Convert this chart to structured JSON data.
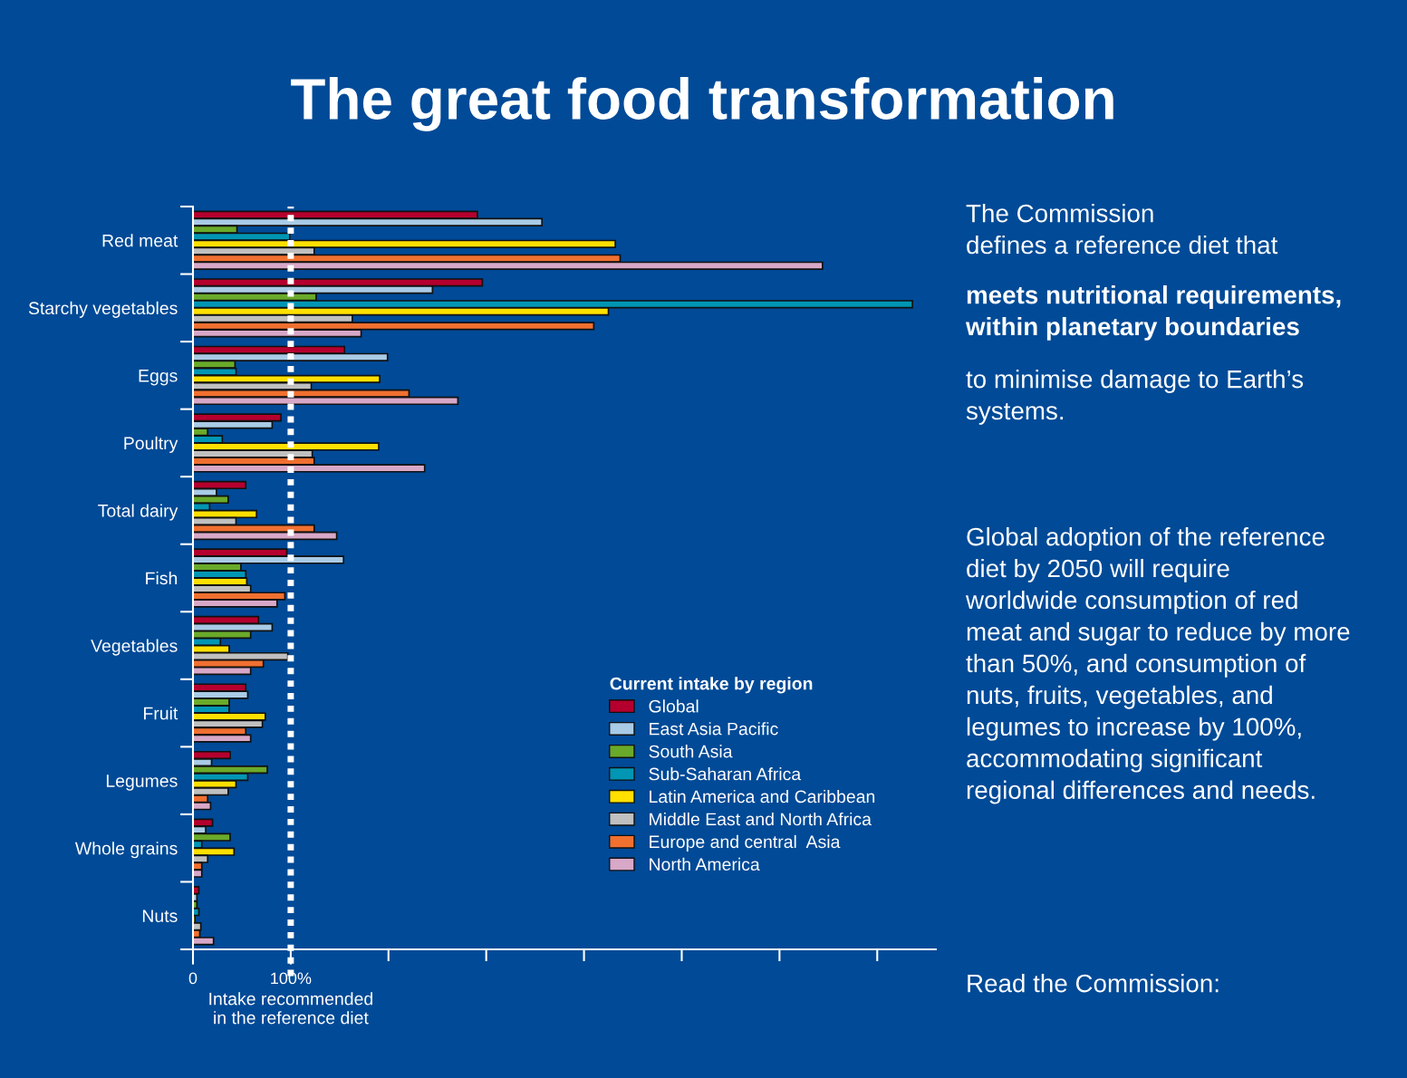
{
  "chart_data": {
    "type": "bar",
    "orientation": "horizontal",
    "title": "The great food transformation",
    "categories": [
      "Red meat",
      "Starchy vegetables",
      "Eggs",
      "Poultry",
      "Total dairy",
      "Fish",
      "Vegetables",
      "Fruit",
      "Legumes",
      "Whole grains",
      "Nuts"
    ],
    "series": [
      {
        "name": "Global",
        "color": "#b5002e",
        "values": [
          291,
          296,
          155,
          90,
          54,
          96,
          67,
          54,
          38,
          20,
          6
        ]
      },
      {
        "name": "East Asia Pacific",
        "color": "#a9cbe6",
        "values": [
          357,
          245,
          199,
          81,
          24,
          154,
          81,
          56,
          19,
          13,
          4
        ]
      },
      {
        "name": "South Asia",
        "color": "#6aaa2a",
        "values": [
          45,
          126,
          43,
          15,
          36,
          49,
          59,
          37,
          76,
          38,
          4
        ]
      },
      {
        "name": "Sub-Saharan Africa",
        "color": "#0096b4",
        "values": [
          99,
          736,
          44,
          30,
          17,
          54,
          28,
          37,
          56,
          9,
          6
        ]
      },
      {
        "name": "Latin America and Caribbean",
        "color": "#ffe000",
        "values": [
          432,
          425,
          191,
          190,
          65,
          55,
          37,
          74,
          44,
          42,
          2
        ]
      },
      {
        "name": "Middle East and North Africa",
        "color": "#c0c0c0",
        "values": [
          124,
          163,
          121,
          122,
          44,
          59,
          97,
          71,
          36,
          15,
          8
        ]
      },
      {
        "name": "Europe and central  Asia",
        "color": "#f07030",
        "values": [
          437,
          410,
          221,
          124,
          124,
          94,
          72,
          54,
          15,
          9,
          7
        ]
      },
      {
        "name": "North America",
        "color": "#d8a8c8",
        "values": [
          644,
          172,
          271,
          237,
          147,
          86,
          59,
          59,
          18,
          9,
          21
        ]
      }
    ],
    "xlim": [
      0,
      760
    ],
    "xticks": [
      0,
      {
        "value": 100,
        "label": "100%"
      },
      {
        "value": 200,
        "label": null
      },
      {
        "value": 300,
        "label": null
      },
      {
        "value": 400,
        "label": null
      },
      {
        "value": 500,
        "label": null
      },
      {
        "value": 600,
        "label": null
      },
      {
        "value": 700,
        "label": null
      }
    ],
    "ref_lines": [
      {
        "axis": "x",
        "value": 100,
        "label": "Intake recommended\nin the reference diet",
        "color": "#ffffff",
        "line_style": "dotted"
      }
    ],
    "legend": "bottom right",
    "legend_title": "Current intake by region",
    "grid": false,
    "annotations": [
      "The Commission\ndefines a reference diet that",
      "meets nutritional requirements,\nwithin planetary boundaries",
      "to minimise damage to Earth’s\nsystems.",
      "Global adoption of the reference\ndiet by 2050 will require\nworldwide consumption of red\nmeat and sugar to reduce by more\nthan 50%, and consumption of\nnuts, fruits, vegetables, and\nlegumes to increase by 100%,\naccommodating significant\nregional differences and needs.",
      "Read the Commission:"
    ]
  }
}
